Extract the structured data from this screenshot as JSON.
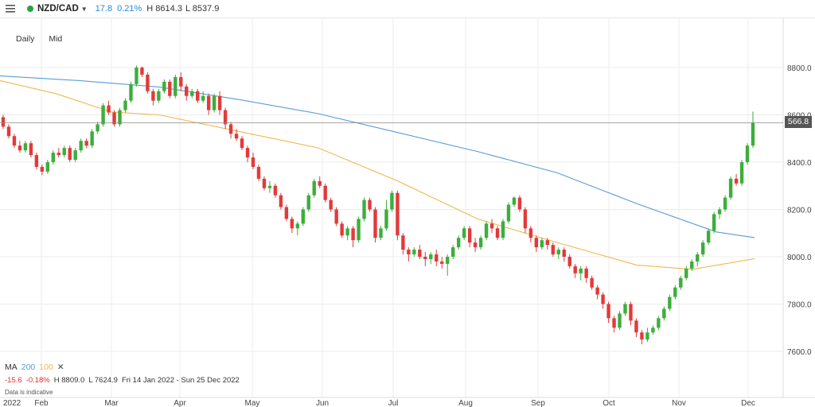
{
  "header": {
    "symbol": "NZD/CAD",
    "change": "17.8",
    "change_pct": "0.21%",
    "high": "H 8614.3",
    "low": "L 8537.9",
    "status_color": "#27a243",
    "menu_icon": "hamburger-menu-icon",
    "caret_icon": "caret-down-icon"
  },
  "periods": {
    "interval": "Daily",
    "price_type": "Mid"
  },
  "legend": {
    "ma_label": "MA",
    "ma1": "200",
    "ma2": "100",
    "close_icon": "close-icon",
    "stat_change": "-15.6",
    "stat_pct": "-0.18%",
    "stat_high": "H 8809.0",
    "stat_low": "L 7624.9",
    "date_range": "Fri 14 Jan 2022 - Sun 25 Dec 2022",
    "note": "Data is indicative"
  },
  "price_label": "566.8",
  "chart_data": {
    "type": "candlestick",
    "y_ticks": [
      "8800.0",
      "8600.0",
      "8400.0",
      "8200.0",
      "8000.0",
      "7800.0",
      "7600.0"
    ],
    "x_ticks": [
      "2022",
      "Feb",
      "Mar",
      "Apr",
      "May",
      "Jun",
      "Jul",
      "Aug",
      "Sep",
      "Oct",
      "Nov",
      "Dec"
    ],
    "last_price": 8566.8,
    "series": [
      {
        "name": "MA 200",
        "color": "#5b9bd5",
        "values": [
          [
            0,
            8765
          ],
          [
            100,
            8745
          ],
          [
            200,
            8718
          ],
          [
            300,
            8665
          ],
          [
            400,
            8605
          ],
          [
            500,
            8525
          ],
          [
            600,
            8445
          ],
          [
            700,
            8355
          ],
          [
            800,
            8225
          ],
          [
            900,
            8105
          ],
          [
            948,
            8081
          ]
        ]
      },
      {
        "name": "MA 100",
        "color": "#f0b84c",
        "values": [
          [
            0,
            8745
          ],
          [
            70,
            8690
          ],
          [
            140,
            8612
          ],
          [
            200,
            8600
          ],
          [
            300,
            8530
          ],
          [
            400,
            8460
          ],
          [
            500,
            8320
          ],
          [
            600,
            8160
          ],
          [
            700,
            8060
          ],
          [
            800,
            7965
          ],
          [
            870,
            7947
          ],
          [
            948,
            7992
          ]
        ]
      }
    ],
    "candles": [
      [
        8590,
        8550,
        8600,
        8540
      ],
      [
        8550,
        8510,
        8560,
        8500
      ],
      [
        8510,
        8470,
        8520,
        8460
      ],
      [
        8470,
        8450,
        8490,
        8440
      ],
      [
        8450,
        8480,
        8490,
        8440
      ],
      [
        8480,
        8430,
        8490,
        8420
      ],
      [
        8430,
        8380,
        8440,
        8370
      ],
      [
        8380,
        8360,
        8390,
        8345
      ],
      [
        8360,
        8400,
        8410,
        8350
      ],
      [
        8400,
        8440,
        8450,
        8390
      ],
      [
        8440,
        8430,
        8460,
        8420
      ],
      [
        8430,
        8460,
        8470,
        8420
      ],
      [
        8460,
        8410,
        8470,
        8400
      ],
      [
        8410,
        8450,
        8460,
        8400
      ],
      [
        8450,
        8490,
        8500,
        8440
      ],
      [
        8490,
        8470,
        8500,
        8460
      ],
      [
        8470,
        8530,
        8540,
        8460
      ],
      [
        8530,
        8560,
        8570,
        8520
      ],
      [
        8560,
        8640,
        8650,
        8550
      ],
      [
        8640,
        8610,
        8660,
        8600
      ],
      [
        8610,
        8560,
        8620,
        8550
      ],
      [
        8560,
        8620,
        8630,
        8550
      ],
      [
        8620,
        8660,
        8670,
        8610
      ],
      [
        8660,
        8730,
        8740,
        8650
      ],
      [
        8730,
        8800,
        8809,
        8720
      ],
      [
        8800,
        8770,
        8805,
        8760
      ],
      [
        8770,
        8700,
        8780,
        8690
      ],
      [
        8700,
        8660,
        8710,
        8640
      ],
      [
        8660,
        8700,
        8710,
        8650
      ],
      [
        8700,
        8740,
        8750,
        8690
      ],
      [
        8740,
        8680,
        8750,
        8670
      ],
      [
        8680,
        8760,
        8770,
        8670
      ],
      [
        8760,
        8720,
        8780,
        8700
      ],
      [
        8720,
        8680,
        8730,
        8660
      ],
      [
        8680,
        8700,
        8710,
        8670
      ],
      [
        8700,
        8660,
        8710,
        8650
      ],
      [
        8660,
        8680,
        8700,
        8650
      ],
      [
        8680,
        8620,
        8690,
        8600
      ],
      [
        8620,
        8680,
        8690,
        8610
      ],
      [
        8680,
        8620,
        8700,
        8600
      ],
      [
        8620,
        8560,
        8630,
        8540
      ],
      [
        8560,
        8520,
        8570,
        8500
      ],
      [
        8520,
        8500,
        8540,
        8490
      ],
      [
        8500,
        8460,
        8510,
        8450
      ],
      [
        8460,
        8420,
        8470,
        8400
      ],
      [
        8420,
        8380,
        8440,
        8370
      ],
      [
        8380,
        8330,
        8390,
        8320
      ],
      [
        8330,
        8290,
        8340,
        8280
      ],
      [
        8290,
        8300,
        8320,
        8270
      ],
      [
        8300,
        8260,
        8310,
        8250
      ],
      [
        8260,
        8210,
        8270,
        8200
      ],
      [
        8210,
        8160,
        8220,
        8150
      ],
      [
        8160,
        8120,
        8170,
        8100
      ],
      [
        8120,
        8140,
        8150,
        8090
      ],
      [
        8140,
        8200,
        8210,
        8130
      ],
      [
        8200,
        8260,
        8270,
        8190
      ],
      [
        8260,
        8320,
        8330,
        8250
      ],
      [
        8320,
        8300,
        8340,
        8290
      ],
      [
        8300,
        8240,
        8310,
        8230
      ],
      [
        8240,
        8200,
        8250,
        8190
      ],
      [
        8200,
        8140,
        8210,
        8130
      ],
      [
        8140,
        8090,
        8150,
        8080
      ],
      [
        8090,
        8120,
        8130,
        8070
      ],
      [
        8120,
        8070,
        8130,
        8040
      ],
      [
        8070,
        8160,
        8170,
        8060
      ],
      [
        8160,
        8240,
        8250,
        8150
      ],
      [
        8240,
        8200,
        8250,
        8190
      ],
      [
        8200,
        8080,
        8210,
        8060
      ],
      [
        8080,
        8120,
        8130,
        8070
      ],
      [
        8120,
        8200,
        8240,
        8110
      ],
      [
        8200,
        8270,
        8280,
        8190
      ],
      [
        8270,
        8090,
        8280,
        8070
      ],
      [
        8090,
        8030,
        8100,
        8010
      ],
      [
        8030,
        8010,
        8040,
        7980
      ],
      [
        8010,
        8030,
        8040,
        8000
      ],
      [
        8030,
        8000,
        8050,
        7990
      ],
      [
        8000,
        7990,
        8020,
        7960
      ],
      [
        7990,
        8010,
        8020,
        7970
      ],
      [
        8010,
        7980,
        8030,
        7960
      ],
      [
        7980,
        7970,
        8000,
        7950
      ],
      [
        7970,
        8000,
        8010,
        7920
      ],
      [
        8000,
        8040,
        8050,
        7990
      ],
      [
        8040,
        8080,
        8090,
        8030
      ],
      [
        8080,
        8120,
        8130,
        8070
      ],
      [
        8120,
        8060,
        8130,
        8040
      ],
      [
        8060,
        8040,
        8080,
        8020
      ],
      [
        8040,
        8080,
        8090,
        8030
      ],
      [
        8080,
        8140,
        8150,
        8070
      ],
      [
        8140,
        8120,
        8160,
        8100
      ],
      [
        8120,
        8080,
        8130,
        8070
      ],
      [
        8080,
        8150,
        8160,
        8070
      ],
      [
        8150,
        8220,
        8230,
        8140
      ],
      [
        8220,
        8250,
        8255,
        8210
      ],
      [
        8250,
        8200,
        8260,
        8190
      ],
      [
        8200,
        8120,
        8210,
        8100
      ],
      [
        8120,
        8080,
        8130,
        8060
      ],
      [
        8080,
        8040,
        8090,
        8020
      ],
      [
        8040,
        8070,
        8080,
        8030
      ],
      [
        8070,
        8050,
        8080,
        8030
      ],
      [
        8050,
        8010,
        8060,
        8000
      ],
      [
        8010,
        8030,
        8040,
        7990
      ],
      [
        8030,
        8000,
        8040,
        7980
      ],
      [
        8000,
        7960,
        8010,
        7950
      ],
      [
        7960,
        7930,
        7970,
        7910
      ],
      [
        7930,
        7950,
        7960,
        7900
      ],
      [
        7950,
        7910,
        7960,
        7890
      ],
      [
        7910,
        7870,
        7920,
        7860
      ],
      [
        7870,
        7840,
        7880,
        7820
      ],
      [
        7840,
        7800,
        7850,
        7780
      ],
      [
        7800,
        7740,
        7810,
        7720
      ],
      [
        7740,
        7700,
        7750,
        7680
      ],
      [
        7700,
        7760,
        7770,
        7690
      ],
      [
        7760,
        7800,
        7810,
        7750
      ],
      [
        7800,
        7730,
        7810,
        7710
      ],
      [
        7730,
        7680,
        7740,
        7660
      ],
      [
        7680,
        7650,
        7690,
        7630
      ],
      [
        7650,
        7680,
        7700,
        7640
      ],
      [
        7680,
        7700,
        7710,
        7670
      ],
      [
        7700,
        7740,
        7750,
        7690
      ],
      [
        7740,
        7780,
        7790,
        7730
      ],
      [
        7780,
        7830,
        7840,
        7770
      ],
      [
        7830,
        7870,
        7880,
        7820
      ],
      [
        7870,
        7910,
        7920,
        7860
      ],
      [
        7910,
        7950,
        7960,
        7900
      ],
      [
        7950,
        7980,
        7990,
        7940
      ],
      [
        7980,
        8010,
        8020,
        7960
      ],
      [
        8010,
        8060,
        8070,
        8000
      ],
      [
        8060,
        8110,
        8120,
        8050
      ],
      [
        8110,
        8180,
        8190,
        8100
      ],
      [
        8180,
        8200,
        8210,
        8160
      ],
      [
        8200,
        8250,
        8260,
        8190
      ],
      [
        8250,
        8330,
        8340,
        8240
      ],
      [
        8330,
        8310,
        8350,
        8300
      ],
      [
        8310,
        8400,
        8410,
        8300
      ],
      [
        8400,
        8470,
        8480,
        8390
      ],
      [
        8470,
        8567,
        8614,
        8460
      ]
    ]
  }
}
